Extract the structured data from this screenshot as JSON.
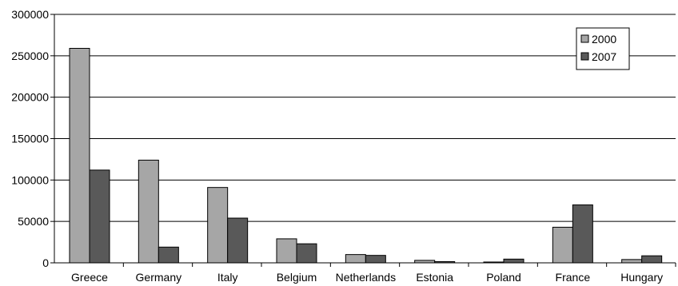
{
  "chart_data": {
    "type": "bar",
    "categories": [
      "Greece",
      "Germany",
      "Italy",
      "Belgium",
      "Netherlands",
      "Estonia",
      "Poland",
      "France",
      "Hungary"
    ],
    "series": [
      {
        "name": "2000",
        "color": "#a6a6a6",
        "values": [
          259000,
          124000,
          91000,
          29000,
          10000,
          3000,
          1000,
          43000,
          4000
        ]
      },
      {
        "name": "2007",
        "color": "#595959",
        "values": [
          112000,
          19000,
          54000,
          23000,
          9000,
          1500,
          4500,
          70000,
          8500
        ]
      }
    ],
    "y_ticks": [
      "0",
      "50000",
      "100000",
      "150000",
      "200000",
      "250000",
      "300000"
    ],
    "ylim": [
      0,
      300000
    ],
    "grid": true,
    "legend_position": "top-right",
    "title": "",
    "xlabel": "",
    "ylabel": ""
  }
}
